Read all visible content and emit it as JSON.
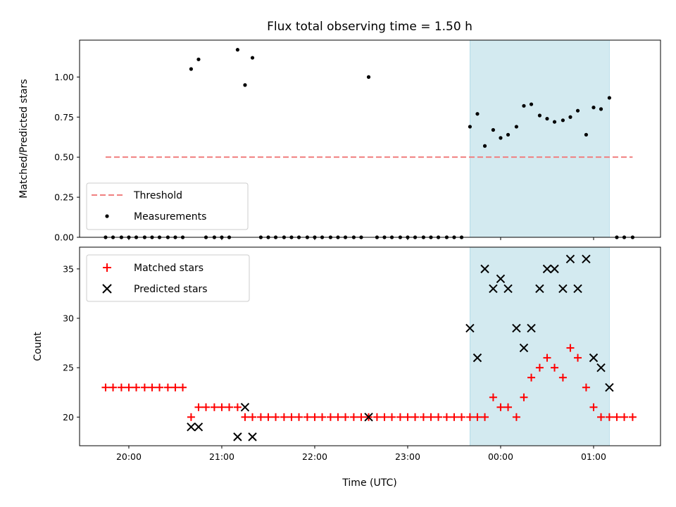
{
  "title": "Flux total observing time = 1.50 h",
  "chart_data": [
    {
      "type": "scatter",
      "ylabel": "Matched/Predicted stars",
      "xlim": [
        19.47,
        25.72
      ],
      "ylim": [
        0,
        1.23
      ],
      "yticks": [
        0,
        0.25,
        0.5,
        0.75,
        1.0
      ],
      "ytick_labels": [
        "0.00",
        "0.25",
        "0.50",
        "0.75",
        "1.00"
      ],
      "shaded_region": [
        23.67,
        25.17
      ],
      "shade_color": "#d3eaf0",
      "threshold": {
        "name": "Threshold",
        "y": 0.5,
        "x_start": 19.75,
        "x_end": 25.42,
        "color": "#f08080",
        "style": "dashed"
      },
      "measurements": {
        "name": "Measurements",
        "color": "#000000",
        "x": [
          19.75,
          19.83,
          19.92,
          20.0,
          20.08,
          20.17,
          20.25,
          20.33,
          20.42,
          20.5,
          20.58,
          20.67,
          20.75,
          20.83,
          20.92,
          21.0,
          21.08,
          21.17,
          21.25,
          21.33,
          21.42,
          21.5,
          21.58,
          21.67,
          21.75,
          21.83,
          21.92,
          22.0,
          22.08,
          22.17,
          22.25,
          22.33,
          22.42,
          22.5,
          22.58,
          22.67,
          22.75,
          22.83,
          22.92,
          23.0,
          23.08,
          23.17,
          23.25,
          23.33,
          23.42,
          23.5,
          23.58,
          23.67,
          23.75,
          23.83,
          23.92,
          24.0,
          24.08,
          24.17,
          24.25,
          24.33,
          24.42,
          24.5,
          24.58,
          24.67,
          24.75,
          24.83,
          24.92,
          25.0,
          25.08,
          25.17,
          25.25,
          25.33,
          25.42
        ],
        "y": [
          0,
          0,
          0,
          0,
          0,
          0,
          0,
          0,
          0,
          0,
          0,
          1.05,
          1.11,
          0,
          0,
          0,
          0,
          1.17,
          0.95,
          1.12,
          0,
          0,
          0,
          0,
          0,
          0,
          0,
          0,
          0,
          0,
          0,
          0,
          0,
          0,
          1.0,
          0,
          0,
          0,
          0,
          0,
          0,
          0,
          0,
          0,
          0,
          0,
          0,
          0.69,
          0.77,
          0.57,
          0.67,
          0.62,
          0.64,
          0.69,
          0.82,
          0.83,
          0.76,
          0.74,
          0.72,
          0.73,
          0.75,
          0.79,
          0.64,
          0.81,
          0.8,
          0.87,
          0,
          0,
          0
        ]
      },
      "legend": {
        "loc": "lower-left",
        "entries": [
          "Threshold",
          "Measurements"
        ]
      }
    },
    {
      "type": "scatter",
      "ylabel": "Count",
      "xlabel": "Time (UTC)",
      "xlim": [
        19.47,
        25.72
      ],
      "ylim": [
        17.1,
        37.2
      ],
      "yticks": [
        20,
        25,
        30,
        35
      ],
      "ytick_labels": [
        "20",
        "25",
        "30",
        "35"
      ],
      "xticks": [
        20,
        21,
        22,
        23,
        24,
        25
      ],
      "xtick_labels": [
        "20:00",
        "21:00",
        "22:00",
        "23:00",
        "00:00",
        "01:00"
      ],
      "shaded_region": [
        23.67,
        25.17
      ],
      "shade_color": "#d3eaf0",
      "series": [
        {
          "name": "Matched stars",
          "marker": "plus",
          "color": "#ff0000",
          "x": [
            19.75,
            19.83,
            19.92,
            20.0,
            20.08,
            20.17,
            20.25,
            20.33,
            20.42,
            20.5,
            20.58,
            20.67,
            20.75,
            20.83,
            20.92,
            21.0,
            21.08,
            21.17,
            21.25,
            21.33,
            21.42,
            21.5,
            21.58,
            21.67,
            21.75,
            21.83,
            21.92,
            22.0,
            22.08,
            22.17,
            22.25,
            22.33,
            22.42,
            22.5,
            22.58,
            22.67,
            22.75,
            22.83,
            22.92,
            23.0,
            23.08,
            23.17,
            23.25,
            23.33,
            23.42,
            23.5,
            23.58,
            23.67,
            23.75,
            23.83,
            23.92,
            24.0,
            24.08,
            24.17,
            24.25,
            24.33,
            24.42,
            24.5,
            24.58,
            24.67,
            24.75,
            24.83,
            24.92,
            25.0,
            25.08,
            25.17,
            25.25,
            25.33,
            25.42
          ],
          "y": [
            23,
            23,
            23,
            23,
            23,
            23,
            23,
            23,
            23,
            23,
            23,
            20,
            21,
            21,
            21,
            21,
            21,
            21,
            20,
            20,
            20,
            20,
            20,
            20,
            20,
            20,
            20,
            20,
            20,
            20,
            20,
            20,
            20,
            20,
            20,
            20,
            20,
            20,
            20,
            20,
            20,
            20,
            20,
            20,
            20,
            20,
            20,
            20,
            20,
            20,
            22,
            21,
            21,
            20,
            22,
            24,
            25,
            26,
            25,
            24,
            27,
            26,
            23,
            21,
            20,
            20,
            20,
            20,
            20
          ]
        },
        {
          "name": "Predicted stars",
          "marker": "x",
          "color": "#000000",
          "x": [
            20.67,
            20.75,
            21.17,
            21.25,
            21.33,
            22.58,
            23.67,
            23.75,
            23.83,
            23.92,
            24.0,
            24.08,
            24.17,
            24.25,
            24.33,
            24.42,
            24.5,
            24.58,
            24.67,
            24.75,
            24.83,
            24.92,
            25.0,
            25.08,
            25.17
          ],
          "y": [
            19,
            19,
            18,
            21,
            18,
            20,
            29,
            26,
            35,
            33,
            34,
            33,
            29,
            27,
            29,
            33,
            35,
            35,
            33,
            36,
            33,
            36,
            26,
            25,
            23
          ]
        }
      ],
      "legend": {
        "loc": "upper-left",
        "entries": [
          "Matched stars",
          "Predicted stars"
        ]
      }
    }
  ]
}
